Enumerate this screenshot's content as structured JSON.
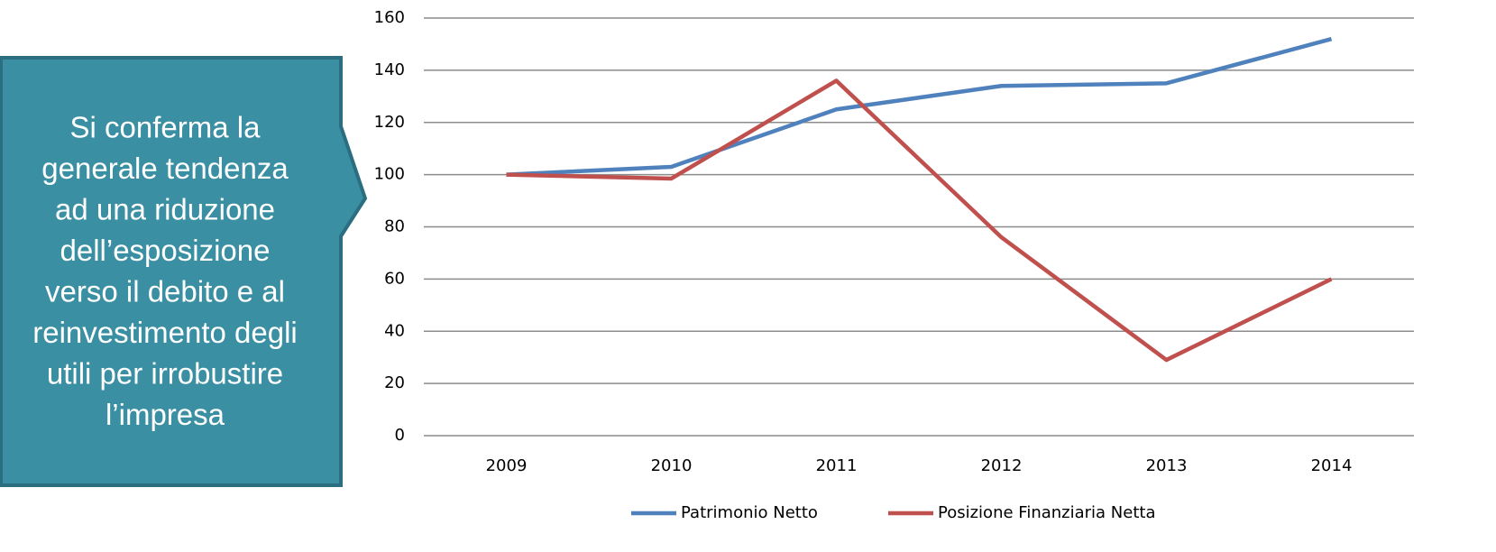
{
  "annotation": [
    "Si conferma la",
    "generale tendenza",
    "ad una riduzione",
    "dell’esposizione",
    "verso il debito e al",
    "reinvestimento degli",
    "utili per irrobustire",
    "l’impresa"
  ],
  "chart_data": {
    "type": "line",
    "categories": [
      "2009",
      "2010",
      "2011",
      "2012",
      "2013",
      "2014"
    ],
    "series": [
      {
        "name": "Patrimonio Netto",
        "color": "#4f81bd",
        "values": [
          100,
          103,
          125,
          134,
          135,
          152
        ]
      },
      {
        "name": "Posizione Finanziaria Netta",
        "color": "#c0504d",
        "values": [
          100,
          98.5,
          136,
          76,
          29,
          60
        ]
      }
    ],
    "ylim": [
      0,
      160
    ],
    "yticks": [
      0,
      20,
      40,
      60,
      80,
      100,
      120,
      140,
      160
    ],
    "grid": true,
    "legend": "bottom"
  }
}
